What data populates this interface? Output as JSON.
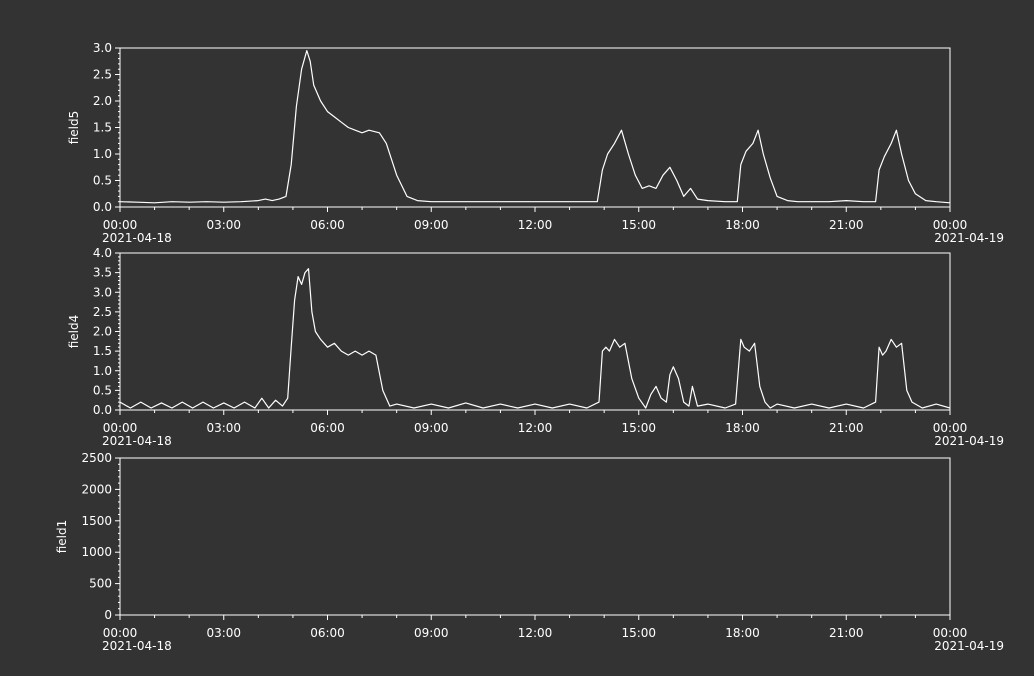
{
  "figure": {
    "background": "#333333",
    "foreground": "#ffffff"
  },
  "chart_data": [
    {
      "type": "line",
      "ylabel": "field5",
      "ylim": [
        0,
        3.0
      ],
      "yticks": [
        "0.0",
        "0.5",
        "1.0",
        "1.5",
        "2.0",
        "2.5",
        "3.0"
      ],
      "xlim": [
        0,
        24
      ],
      "xticks": [
        "00:00",
        "03:00",
        "06:00",
        "09:00",
        "12:00",
        "15:00",
        "18:00",
        "21:00",
        "00:00"
      ],
      "date_start": "2021-04-18",
      "date_end": "2021-04-19",
      "grid": false,
      "series": [
        {
          "x": [
            0,
            0.5,
            1,
            1.5,
            2,
            2.5,
            3,
            3.5,
            4,
            4.2,
            4.4,
            4.6,
            4.8,
            4.95,
            5.1,
            5.25,
            5.4,
            5.5,
            5.6,
            5.8,
            6.0,
            6.2,
            6.4,
            6.6,
            6.8,
            7.0,
            7.2,
            7.5,
            7.7,
            8.0,
            8.3,
            8.6,
            9.0,
            10,
            11,
            12,
            13,
            13.8,
            13.95,
            14.1,
            14.3,
            14.5,
            14.7,
            14.9,
            15.1,
            15.3,
            15.5,
            15.7,
            15.9,
            16.1,
            16.3,
            16.5,
            16.7,
            17.0,
            17.5,
            17.85,
            17.95,
            18.1,
            18.3,
            18.45,
            18.6,
            18.8,
            19.0,
            19.3,
            19.6,
            20,
            20.5,
            21,
            21.5,
            21.85,
            21.95,
            22.1,
            22.3,
            22.45,
            22.6,
            22.8,
            23.0,
            23.3,
            23.6,
            24
          ],
          "y": [
            0.1,
            0.09,
            0.08,
            0.1,
            0.09,
            0.1,
            0.09,
            0.1,
            0.12,
            0.15,
            0.12,
            0.15,
            0.2,
            0.8,
            1.9,
            2.6,
            2.95,
            2.75,
            2.3,
            2.0,
            1.8,
            1.7,
            1.6,
            1.5,
            1.45,
            1.4,
            1.45,
            1.4,
            1.2,
            0.6,
            0.2,
            0.12,
            0.1,
            0.1,
            0.1,
            0.1,
            0.1,
            0.1,
            0.7,
            1.0,
            1.2,
            1.45,
            1.0,
            0.6,
            0.35,
            0.4,
            0.35,
            0.6,
            0.75,
            0.5,
            0.2,
            0.35,
            0.15,
            0.12,
            0.1,
            0.1,
            0.8,
            1.05,
            1.2,
            1.45,
            1.0,
            0.55,
            0.2,
            0.12,
            0.1,
            0.1,
            0.1,
            0.12,
            0.1,
            0.1,
            0.7,
            0.95,
            1.2,
            1.45,
            1.0,
            0.5,
            0.25,
            0.12,
            0.1,
            0.08
          ]
        }
      ]
    },
    {
      "type": "line",
      "ylabel": "field4",
      "ylim": [
        0,
        4.0
      ],
      "yticks": [
        "0.0",
        "0.5",
        "1.0",
        "1.5",
        "2.0",
        "2.5",
        "3.0",
        "3.5",
        "4.0"
      ],
      "xlim": [
        0,
        24
      ],
      "xticks": [
        "00:00",
        "03:00",
        "06:00",
        "09:00",
        "12:00",
        "15:00",
        "18:00",
        "21:00",
        "00:00"
      ],
      "date_start": "2021-04-18",
      "date_end": "2021-04-19",
      "grid": false,
      "series": [
        {
          "x": [
            0,
            0.3,
            0.6,
            0.9,
            1.2,
            1.5,
            1.8,
            2.1,
            2.4,
            2.7,
            3.0,
            3.3,
            3.6,
            3.9,
            4.1,
            4.3,
            4.5,
            4.7,
            4.85,
            4.95,
            5.05,
            5.15,
            5.25,
            5.35,
            5.45,
            5.55,
            5.65,
            5.8,
            6.0,
            6.2,
            6.4,
            6.6,
            6.8,
            7.0,
            7.2,
            7.4,
            7.6,
            7.8,
            8.0,
            8.5,
            9,
            9.5,
            10,
            10.5,
            11,
            11.5,
            12,
            12.5,
            13,
            13.5,
            13.85,
            13.95,
            14.05,
            14.15,
            14.3,
            14.45,
            14.6,
            14.8,
            15.0,
            15.2,
            15.35,
            15.5,
            15.65,
            15.8,
            15.9,
            16.0,
            16.15,
            16.3,
            16.45,
            16.55,
            16.7,
            17.0,
            17.5,
            17.8,
            17.95,
            18.05,
            18.2,
            18.35,
            18.5,
            18.65,
            18.8,
            19.0,
            19.5,
            20,
            20.5,
            21,
            21.5,
            21.85,
            21.95,
            22.05,
            22.15,
            22.3,
            22.45,
            22.6,
            22.75,
            22.9,
            23.2,
            23.6,
            24
          ],
          "y": [
            0.2,
            0.05,
            0.2,
            0.05,
            0.18,
            0.05,
            0.2,
            0.05,
            0.2,
            0.05,
            0.18,
            0.05,
            0.2,
            0.05,
            0.3,
            0.05,
            0.25,
            0.1,
            0.3,
            1.6,
            2.8,
            3.4,
            3.2,
            3.5,
            3.6,
            2.5,
            2.0,
            1.8,
            1.6,
            1.7,
            1.5,
            1.4,
            1.5,
            1.4,
            1.5,
            1.4,
            0.5,
            0.1,
            0.15,
            0.05,
            0.15,
            0.05,
            0.18,
            0.05,
            0.15,
            0.05,
            0.15,
            0.05,
            0.15,
            0.05,
            0.2,
            1.5,
            1.6,
            1.5,
            1.8,
            1.6,
            1.7,
            0.8,
            0.3,
            0.05,
            0.4,
            0.6,
            0.3,
            0.2,
            0.9,
            1.1,
            0.8,
            0.2,
            0.1,
            0.6,
            0.1,
            0.15,
            0.05,
            0.15,
            1.8,
            1.6,
            1.5,
            1.7,
            0.6,
            0.2,
            0.05,
            0.15,
            0.05,
            0.15,
            0.05,
            0.15,
            0.05,
            0.2,
            1.6,
            1.4,
            1.5,
            1.8,
            1.6,
            1.7,
            0.5,
            0.2,
            0.05,
            0.15,
            0.05
          ]
        }
      ]
    },
    {
      "type": "line",
      "ylabel": "field1",
      "ylim": [
        0,
        2500
      ],
      "yticks": [
        "0",
        "500",
        "1000",
        "1500",
        "2000",
        "2500"
      ],
      "xlim": [
        0,
        24
      ],
      "xticks": [
        "00:00",
        "03:00",
        "06:00",
        "09:00",
        "12:00",
        "15:00",
        "18:00",
        "21:00",
        "00:00"
      ],
      "date_start": "2021-04-18",
      "date_end": "2021-04-19",
      "grid": false,
      "series": []
    }
  ]
}
